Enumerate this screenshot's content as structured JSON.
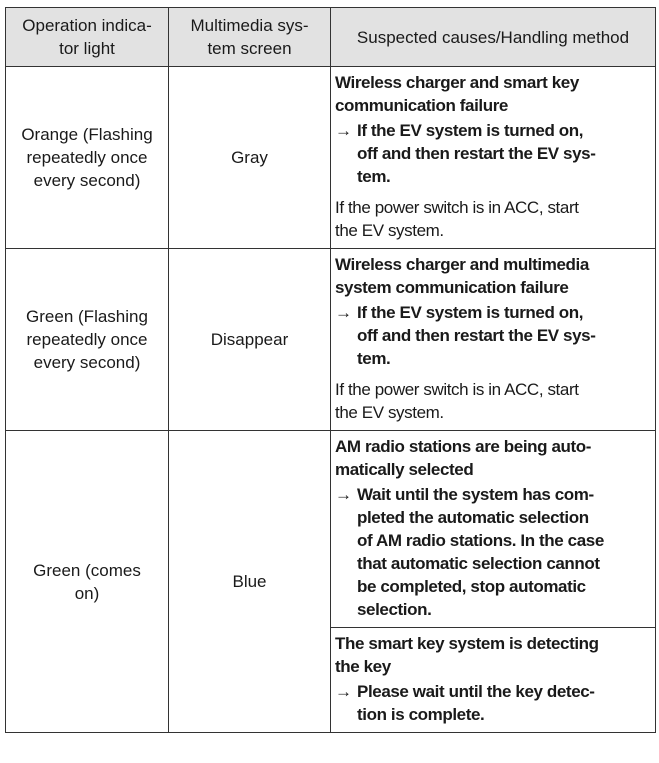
{
  "headers": [
    "Operation indica-\ntor light",
    "Multimedia sys-\ntem screen",
    "Suspected causes/Handling method"
  ],
  "rows": [
    {
      "indicator": "Orange (Flashing\nrepeatedly once\nevery second)",
      "screen": "Gray",
      "causes": [
        {
          "title": "Wireless charger and smart key\ncommunication failure",
          "action": "If the EV system is turned on,\noff and then restart the EV sys-\ntem.",
          "note": "If the power switch is in ACC, start\nthe EV system."
        }
      ]
    },
    {
      "indicator": "Green (Flashing\nrepeatedly once\nevery second)",
      "screen": "Disappear",
      "causes": [
        {
          "title": "Wireless charger and multimedia\nsystem communication failure",
          "action": "If the EV system is turned on,\noff and then restart the EV sys-\ntem.",
          "note": "If the power switch is in ACC, start\nthe EV system."
        }
      ]
    },
    {
      "indicator": "Green (comes\non)",
      "screen": "Blue",
      "causes": [
        {
          "title": "AM radio stations are being auto-\nmatically selected",
          "action": "Wait until the system has com-\npleted the automatic selection\nof AM radio stations. In the case\nthat automatic selection cannot\nbe completed, stop automatic\nselection."
        },
        {
          "title": "The smart key system is detecting\nthe key",
          "action": "Please wait until the key detec-\ntion is complete."
        }
      ]
    }
  ],
  "arrow_symbol": "→"
}
